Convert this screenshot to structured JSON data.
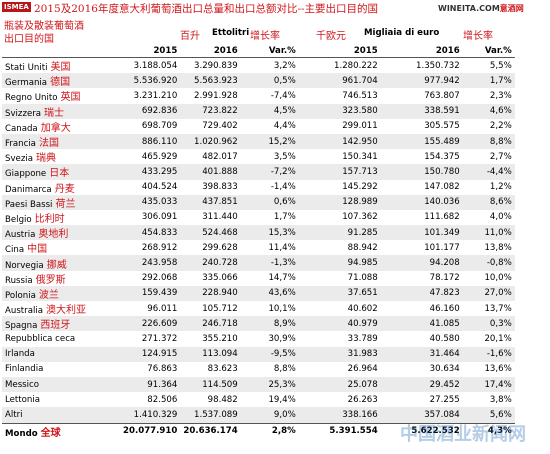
{
  "header": {
    "logo": "ISMEA",
    "title": "2015及2016年度意大利葡萄酒出口总量和出口总额对比--主要出口目的国",
    "site": "WINEITA.COM",
    "site_cn": "意酒网"
  },
  "table": {
    "subtitle": [
      "瓶装及散装葡萄酒",
      "出口目的国"
    ],
    "header_cn": [
      "百升",
      "增长率",
      "千欧元",
      "增长率"
    ],
    "header_it": [
      "Ettolitri",
      "Migliaia di euro"
    ],
    "years": [
      "2015",
      "2016",
      "Var.%",
      "2015",
      "2016",
      "Var.%"
    ],
    "rows": [
      {
        "country": "Stati Uniti",
        "cn": "美国",
        "cells": [
          "3.188.054",
          "3.290.839",
          "3,2%",
          "1.280.222",
          "1.350.732",
          "5,5%"
        ]
      },
      {
        "country": "Germania",
        "cn": "德国",
        "cells": [
          "5.536.920",
          "5.563.923",
          "0,5%",
          "961.704",
          "977.942",
          "1,7%"
        ]
      },
      {
        "country": "Regno Unito",
        "cn": "英国",
        "cells": [
          "3.231.210",
          "2.991.928",
          "-7,4%",
          "746.513",
          "763.807",
          "2,3%"
        ]
      },
      {
        "country": "Svizzera",
        "cn": "瑞士",
        "cells": [
          "692.836",
          "723.822",
          "4,5%",
          "323.580",
          "338.591",
          "4,6%"
        ]
      },
      {
        "country": "Canada",
        "cn": "加拿大",
        "cells": [
          "698.709",
          "729.402",
          "4,4%",
          "299.011",
          "305.575",
          "2,2%"
        ]
      },
      {
        "country": "Francia",
        "cn": "法国",
        "cells": [
          "886.110",
          "1.020.962",
          "15,2%",
          "142.950",
          "155.489",
          "8,8%"
        ]
      },
      {
        "country": "Svezia",
        "cn": "瑞典",
        "cells": [
          "465.929",
          "482.017",
          "3,5%",
          "150.341",
          "154.375",
          "2,7%"
        ]
      },
      {
        "country": "Giappone",
        "cn": "日本",
        "cells": [
          "433.295",
          "401.888",
          "-7,2%",
          "157.713",
          "150.780",
          "-4,4%"
        ]
      },
      {
        "country": "Danimarca",
        "cn": "丹麦",
        "cells": [
          "404.524",
          "398.833",
          "-1,4%",
          "145.292",
          "147.082",
          "1,2%"
        ]
      },
      {
        "country": "Paesi Bassi",
        "cn": "荷兰",
        "cells": [
          "435.033",
          "437.851",
          "0,6%",
          "128.989",
          "140.036",
          "8,6%"
        ]
      },
      {
        "country": "Belgio",
        "cn": "比利时",
        "cells": [
          "306.091",
          "311.440",
          "1,7%",
          "107.362",
          "111.682",
          "4,0%"
        ]
      },
      {
        "country": "Austria",
        "cn": "奥地利",
        "cells": [
          "454.833",
          "524.468",
          "15,3%",
          "91.285",
          "101.349",
          "11,0%"
        ]
      },
      {
        "country": "Cina",
        "cn": "中国",
        "cells": [
          "268.912",
          "299.628",
          "11,4%",
          "88.942",
          "101.177",
          "13,8%"
        ]
      },
      {
        "country": "Norvegia",
        "cn": "挪威",
        "cells": [
          "243.958",
          "240.728",
          "-1,3%",
          "94.985",
          "94.208",
          "-0,8%"
        ]
      },
      {
        "country": "Russia",
        "cn": "俄罗斯",
        "cells": [
          "292.068",
          "335.066",
          "14,7%",
          "71.088",
          "78.172",
          "10,0%"
        ]
      },
      {
        "country": "Polonia",
        "cn": "波兰",
        "cells": [
          "159.439",
          "228.940",
          "43,6%",
          "37.651",
          "47.823",
          "27,0%"
        ]
      },
      {
        "country": "Australia",
        "cn": "澳大利亚",
        "cells": [
          "96.011",
          "105.712",
          "10,1%",
          "40.602",
          "46.160",
          "13,7%"
        ]
      },
      {
        "country": "Spagna",
        "cn": "西班牙",
        "cells": [
          "226.609",
          "246.718",
          "8,9%",
          "40.979",
          "41.085",
          "0,3%"
        ]
      },
      {
        "country": "Repubblica ceca",
        "cells": [
          "271.372",
          "355.210",
          "30,9%",
          "33.789",
          "40.580",
          "20,1%"
        ]
      },
      {
        "country": "Irlanda",
        "cells": [
          "124.915",
          "113.094",
          "-9,5%",
          "31.983",
          "31.464",
          "-1,6%"
        ]
      },
      {
        "country": "Finlandia",
        "cells": [
          "76.863",
          "83.623",
          "8,8%",
          "26.964",
          "30.634",
          "13,6%"
        ]
      },
      {
        "country": "Messico",
        "cells": [
          "91.364",
          "114.509",
          "25,3%",
          "25.078",
          "29.452",
          "17,4%"
        ]
      },
      {
        "country": "Lettonia",
        "cells": [
          "82.506",
          "98.482",
          "19,4%",
          "26.263",
          "27.255",
          "3,8%"
        ]
      },
      {
        "country": "Altri",
        "cells": [
          "1.410.329",
          "1.537.089",
          "9,0%",
          "338.166",
          "357.084",
          "5,6%"
        ]
      },
      {
        "country": "Mondo",
        "cn": "全球",
        "cells": [
          "20.077.910",
          "20.636.174",
          "2,8%",
          "5.391.554",
          "5.622.532",
          "4,3%"
        ],
        "total": true
      }
    ]
  },
  "watermark": "中国酒业新闻网"
}
